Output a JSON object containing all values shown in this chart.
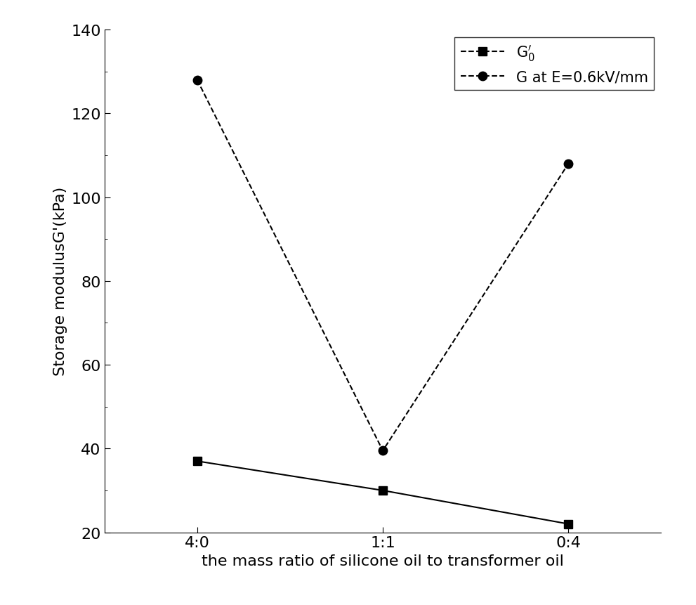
{
  "x_labels": [
    "4:0",
    "1:1",
    "0:4"
  ],
  "x_positions": [
    0,
    1,
    2
  ],
  "g0_values": [
    37,
    30,
    22
  ],
  "g_electric_values": [
    128,
    39.5,
    108
  ],
  "ylabel": "Storage modulusG'(kPa)",
  "xlabel": "the mass ratio of silicone oil to transformer oil",
  "ylim": [
    20,
    140
  ],
  "yticks": [
    20,
    40,
    60,
    80,
    100,
    120,
    140
  ],
  "legend_label_g0": "$\\mathregular{G}_0^{\\prime}$",
  "legend_label_ge": "G at E=0.6kV/mm",
  "line_color": "black",
  "marker_square": "s",
  "marker_circle": "o",
  "markersize": 9,
  "linewidth": 1.5,
  "label_fontsize": 16,
  "tick_fontsize": 16,
  "legend_fontsize": 15,
  "fig_width": 9.91,
  "fig_height": 8.62,
  "dpi": 100
}
